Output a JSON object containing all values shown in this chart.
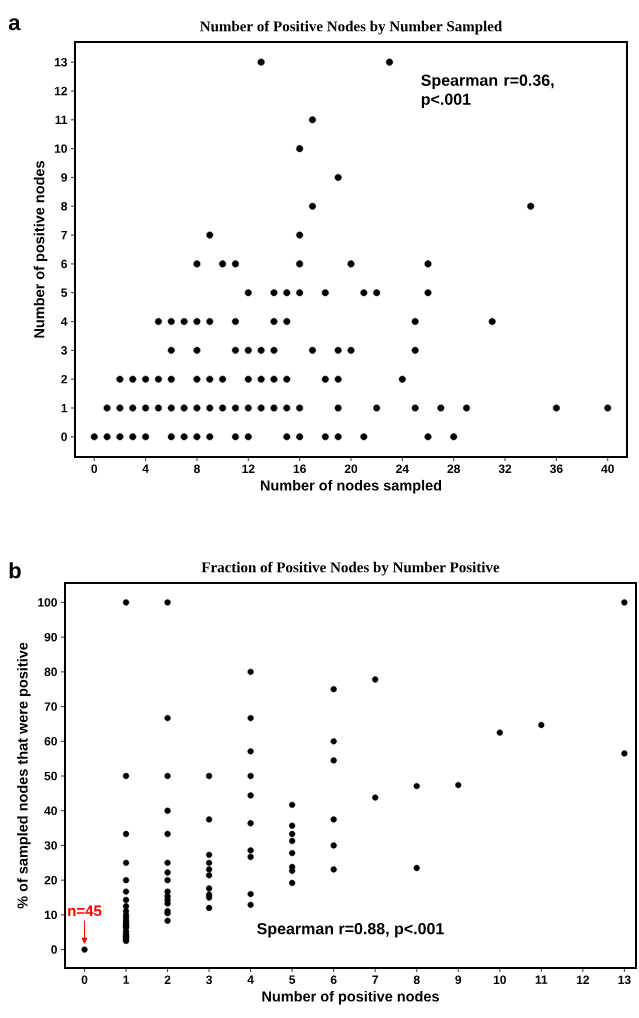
{
  "chart_data": [
    {
      "type": "scatter",
      "title": "Number of Positive Nodes by Number Sampled",
      "xlabel": "Number of nodes sampled",
      "ylabel": "Number of positive nodes",
      "annotations": [
        "a",
        "Spearman r=0.36, p<.001"
      ],
      "series": [
        {
          "color": "#000000",
          "x": [
            0,
            1,
            2,
            3,
            4,
            6,
            7,
            8,
            9,
            11,
            12,
            15,
            16,
            18,
            19,
            21,
            26,
            28,
            1,
            2,
            3,
            4,
            5,
            6,
            7,
            8,
            9,
            10,
            11,
            12,
            13,
            14,
            15,
            16,
            19,
            22,
            25,
            27,
            29,
            36,
            40,
            2,
            3,
            4,
            5,
            6,
            8,
            9,
            10,
            12,
            13,
            14,
            15,
            18,
            19,
            24,
            6,
            8,
            11,
            12,
            13,
            14,
            17,
            19,
            20,
            25,
            5,
            6,
            7,
            8,
            9,
            11,
            14,
            15,
            25,
            31,
            12,
            14,
            15,
            16,
            18,
            21,
            22,
            26,
            8,
            10,
            11,
            16,
            20,
            26,
            9,
            16,
            17,
            34,
            19,
            16,
            17,
            13,
            23
          ],
          "values": [
            0,
            0,
            0,
            0,
            0,
            0,
            0,
            0,
            0,
            0,
            0,
            0,
            0,
            0,
            0,
            0,
            0,
            0,
            1,
            1,
            1,
            1,
            1,
            1,
            1,
            1,
            1,
            1,
            1,
            1,
            1,
            1,
            1,
            1,
            1,
            1,
            1,
            1,
            1,
            1,
            1,
            2,
            2,
            2,
            2,
            2,
            2,
            2,
            2,
            2,
            2,
            2,
            2,
            2,
            2,
            2,
            3,
            3,
            3,
            3,
            3,
            3,
            3,
            3,
            3,
            3,
            4,
            4,
            4,
            4,
            4,
            4,
            4,
            4,
            4,
            4,
            5,
            5,
            5,
            5,
            5,
            5,
            5,
            5,
            6,
            6,
            6,
            6,
            6,
            6,
            7,
            7,
            8,
            8,
            9,
            10,
            11,
            13,
            13
          ]
        }
      ],
      "xlim": [
        -1.5,
        41.5
      ],
      "ylim": [
        -0.7,
        13.7
      ],
      "xticks": [
        0,
        4,
        8,
        12,
        16,
        20,
        24,
        28,
        32,
        36,
        40
      ],
      "yticks": [
        0,
        1,
        2,
        3,
        4,
        5,
        6,
        7,
        8,
        9,
        10,
        11,
        12,
        13
      ]
    },
    {
      "type": "scatter",
      "title": "Fraction of Positive Nodes by Number Positive",
      "xlabel": "Number of positive nodes",
      "ylabel": "% of sampled nodes that were positive",
      "annotations": [
        "b",
        {
          "text": "n=45",
          "x": 0,
          "y": 0
        },
        "Spearman r=0.88, p<.001"
      ],
      "series": [
        {
          "color": "#000000",
          "x": [
            0,
            1,
            1,
            1,
            1,
            1,
            1,
            1,
            1,
            1,
            1,
            1,
            1,
            1,
            1,
            1,
            1,
            1,
            1,
            1,
            1,
            1,
            1,
            1,
            2,
            2,
            2,
            2,
            2,
            2,
            2,
            2,
            2,
            2,
            2,
            2,
            2,
            2,
            2,
            3,
            3,
            3,
            3,
            3,
            3,
            3,
            3,
            3,
            3,
            4,
            4,
            4,
            4,
            4,
            4,
            4,
            4,
            4,
            4,
            5,
            5,
            5,
            5,
            5,
            5,
            5,
            5,
            6,
            6,
            6,
            6,
            6,
            6,
            7,
            7,
            8,
            8,
            9,
            10,
            11,
            13,
            13
          ],
          "values": [
            0,
            100,
            50,
            33.3,
            25,
            20,
            16.7,
            14.3,
            12.5,
            11.1,
            10,
            9.1,
            8.3,
            7.7,
            7.1,
            6.7,
            6.3,
            5.3,
            4.5,
            4,
            3.7,
            3.4,
            2.8,
            2.5,
            100,
            66.7,
            50,
            40,
            33.3,
            25,
            22.2,
            20,
            16.7,
            15.4,
            14.3,
            13.3,
            11.1,
            10.5,
            8.3,
            50,
            37.5,
            27.3,
            25,
            23.1,
            21.4,
            17.6,
            15.8,
            15,
            12,
            80,
            66.7,
            57.1,
            50,
            44.4,
            36.4,
            28.6,
            26.7,
            16,
            12.9,
            41.7,
            35.7,
            33.3,
            31.3,
            27.8,
            23.8,
            22.7,
            19.2,
            75,
            60,
            54.5,
            37.5,
            30,
            23.1,
            77.8,
            43.8,
            47.1,
            23.5,
            47.4,
            62.5,
            64.7,
            100,
            56.5
          ]
        }
      ],
      "xlim": [
        -0.47,
        13.28
      ],
      "ylim": [
        -5.3,
        105.6
      ],
      "xticks": [
        0,
        1,
        2,
        3,
        4,
        5,
        6,
        7,
        8,
        9,
        10,
        11,
        12,
        13
      ],
      "yticks": [
        0,
        10,
        20,
        30,
        40,
        50,
        60,
        70,
        80,
        90,
        100
      ]
    }
  ]
}
